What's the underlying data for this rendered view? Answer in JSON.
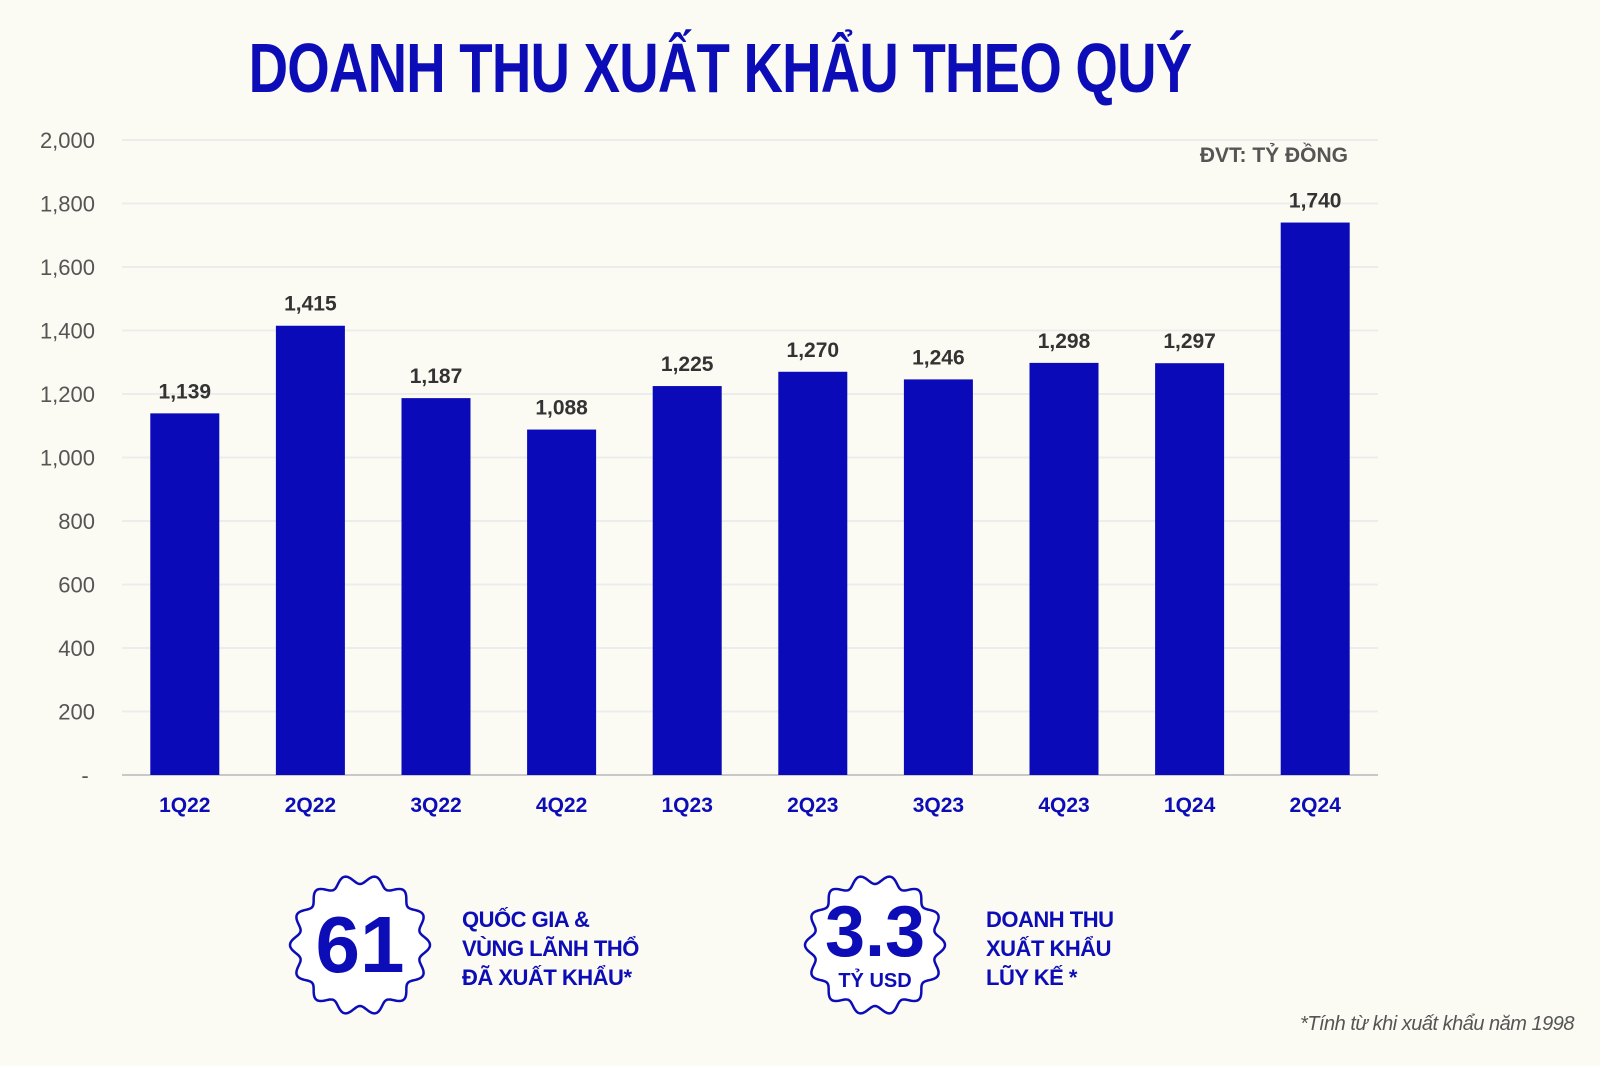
{
  "title": "DOANH THU XUẤT KHẨU THEO QUÝ",
  "unit_label": "ĐVT: TỶ ĐỒNG",
  "chart_data": {
    "type": "bar",
    "categories": [
      "1Q22",
      "2Q22",
      "3Q22",
      "4Q22",
      "1Q23",
      "2Q23",
      "3Q23",
      "4Q23",
      "1Q24",
      "2Q24"
    ],
    "values": [
      1139,
      1415,
      1187,
      1088,
      1225,
      1270,
      1246,
      1298,
      1297,
      1740
    ],
    "value_labels": [
      "1,139",
      "1,415",
      "1,187",
      "1,088",
      "1,225",
      "1,270",
      "1,246",
      "1,298",
      "1,297",
      "1,740"
    ],
    "ylim": [
      0,
      2000
    ],
    "yticks": [
      "-",
      "200",
      "400",
      "600",
      "800",
      "1,000",
      "1,200",
      "1,400",
      "1,600",
      "1,800",
      "2,000"
    ],
    "grid": true,
    "bar_color": "#0a0ab8"
  },
  "stats": [
    {
      "value": "61",
      "sublabel": "",
      "lines": [
        "QUỐC GIA &",
        "VÙNG LÃNH THỔ",
        "ĐÃ XUẤT KHẨU*"
      ]
    },
    {
      "value": "3.3",
      "sublabel": "TỶ USD",
      "lines": [
        "DOANH THU",
        "XUẤT KHẨU",
        "LŨY KẾ *"
      ]
    }
  ],
  "footnote": "*Tính từ khi xuất khẩu năm 1998",
  "colors": {
    "accent": "#0d0db8",
    "background": "#fbfbf3"
  }
}
